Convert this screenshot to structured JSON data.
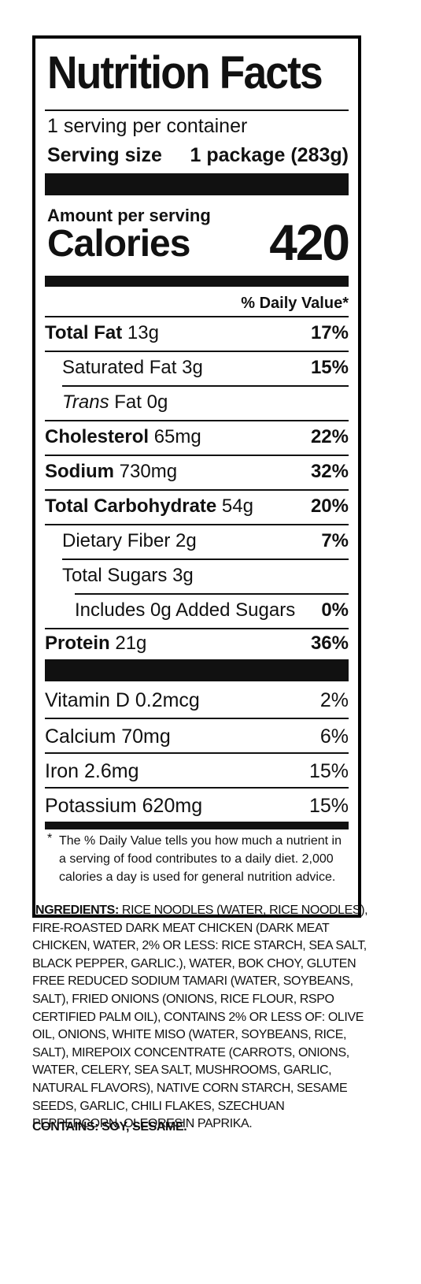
{
  "title": "Nutrition Facts",
  "servings_per_container": "1 serving per container",
  "serving_size": {
    "label": "Serving size",
    "value": "1 package (283g)"
  },
  "amount_per_serving": "Amount per serving",
  "calories": {
    "label": "Calories",
    "value": "420"
  },
  "daily_value_header": "% Daily Value*",
  "nutrients": [
    {
      "name": "Total Fat",
      "amount": "13g",
      "dv": "17%"
    },
    {
      "name": "Saturated Fat",
      "amount": "3g",
      "dv": "15%"
    },
    {
      "name": "Trans",
      "suffix": "Fat",
      "amount": "0g",
      "dv": ""
    },
    {
      "name": "Cholesterol",
      "amount": "65mg",
      "dv": "22%"
    },
    {
      "name": "Sodium",
      "amount": "730mg",
      "dv": "32%"
    },
    {
      "name": "Total Carbohydrate",
      "amount": "54g",
      "dv": "20%"
    },
    {
      "name": "Dietary Fiber",
      "amount": "2g",
      "dv": "7%"
    },
    {
      "name": "Total Sugars",
      "amount": "3g",
      "dv": ""
    },
    {
      "name": "Includes 0g Added Sugars",
      "amount": "",
      "dv": "0%"
    },
    {
      "name": "Protein",
      "amount": "21g",
      "dv": "36%"
    }
  ],
  "vitamins": [
    {
      "name": "Vitamin D 0.2mcg",
      "dv": "2%"
    },
    {
      "name": "Calcium 70mg",
      "dv": "6%"
    },
    {
      "name": "Iron 2.6mg",
      "dv": "15%"
    },
    {
      "name": "Potassium 620mg",
      "dv": "15%"
    }
  ],
  "footnote": {
    "star": "*",
    "text": "The % Daily Value tells you how much a nutrient in a serving of food contributes to a daily diet. 2,000 calories a day is used for general nutrition advice."
  },
  "ingredients": {
    "label": "INGREDIENTS:",
    "text": "RICE NOODLES (WATER, RICE NOODLES), FIRE-ROASTED DARK MEAT CHICKEN (DARK MEAT CHICKEN, WATER, 2% OR LESS: RICE STARCH, SEA SALT, BLACK PEPPER, GARLIC.), WATER, BOK CHOY, GLUTEN FREE REDUCED SODIUM TAMARI (WATER, SOYBEANS, SALT), FRIED ONIONS (ONIONS, RICE FLOUR, RSPO CERTIFIED PALM OIL), CONTAINS 2% OR LESS OF: OLIVE OIL, ONIONS, WHITE MISO (WATER, SOYBEANS, RICE, SALT), MIREPOIX CONCENTRATE (CARROTS, ONIONS, WATER, CELERY, SEA SALT, MUSHROOMS, GARLIC, NATURAL FLAVORS), NATIVE CORN STARCH, SESAME SEEDS, GARLIC, CHILI FLAKES, SZECHUAN PEPPERCORN, OLEORESIN PAPRIKA."
  },
  "contains": "CONTAINS: SOY, SESAME."
}
